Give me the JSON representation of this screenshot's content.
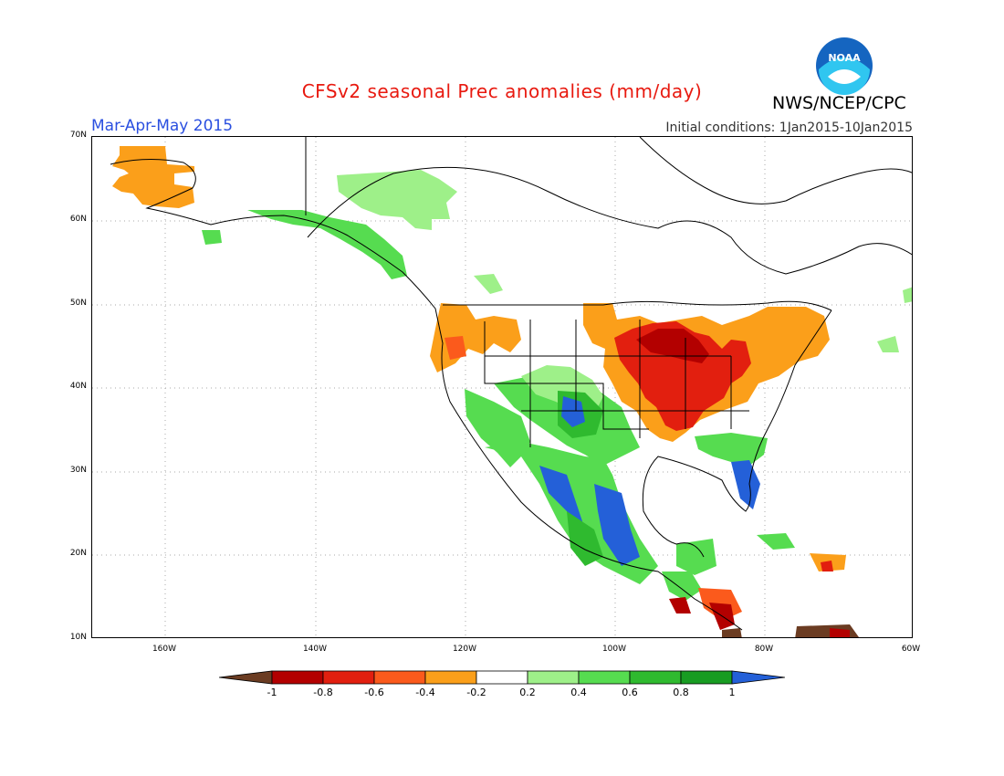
{
  "header": {
    "title": "CFSv2 seasonal Prec anomalies (mm/day)",
    "agency": "NWS/NCEP/CPC",
    "season": "Mar-Apr-May 2015",
    "initial_conditions": "Initial conditions: 1Jan2015-10Jan2015",
    "logo_text": "NOAA"
  },
  "axes": {
    "lat_labels": [
      "70N",
      "60N",
      "50N",
      "40N",
      "30N",
      "20N",
      "10N"
    ],
    "lon_labels": [
      "160W",
      "140W",
      "120W",
      "100W",
      "80W",
      "60W"
    ]
  },
  "colorbar": {
    "labels": [
      "-1",
      "-0.8",
      "-0.6",
      "-0.4",
      "-0.2",
      "0.2",
      "0.4",
      "0.6",
      "0.8",
      "1"
    ],
    "colors": [
      "#6b3c22",
      "#b30000",
      "#e21f0f",
      "#fb5a1c",
      "#fb9f1a",
      "#ffffff",
      "#9ef089",
      "#56dc50",
      "#2fba2f",
      "#189c22",
      "#2460d8"
    ]
  }
}
